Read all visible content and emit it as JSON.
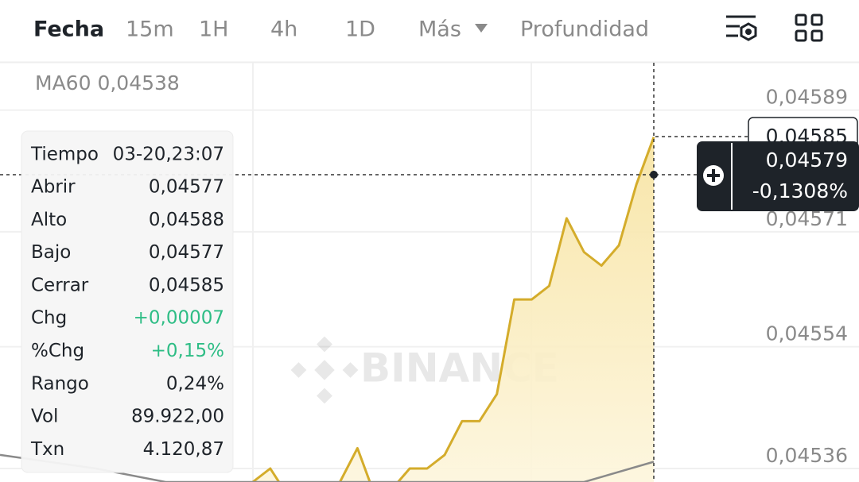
{
  "tabs": [
    "Fecha",
    "15m",
    "1H",
    "4h",
    "1D",
    "Más",
    "Profundidad"
  ],
  "ma": {
    "name": "MA60",
    "value": "0,04538"
  },
  "tooltip": {
    "time_label": "Tiempo",
    "time": "03-20,23:07",
    "rows": [
      [
        "Abrir",
        "0,04577"
      ],
      [
        "Alto",
        "0,04588"
      ],
      [
        "Bajo",
        "0,04577"
      ],
      [
        "Cerrar",
        "0,04585"
      ],
      [
        "Chg",
        "+0,00007"
      ],
      [
        "%Chg",
        "+0,15%"
      ],
      [
        "Rango",
        "0,24%"
      ],
      [
        "Vol",
        "89.922,00"
      ],
      [
        "Txn",
        "4.120,87"
      ]
    ]
  },
  "last_price": "0,04585",
  "crosshair": {
    "price": "0,04579",
    "change": "-0,1308%"
  },
  "watermark": "BINANCE",
  "chart_data": {
    "type": "line",
    "xlim": [
      -14.5,
      23
    ],
    "ylim": [
      0.04534,
      0.04596
    ],
    "yticks": [
      {
        "value": 0.04589,
        "label": "0,04589"
      },
      {
        "value": 0.04571,
        "label": "0,04571"
      },
      {
        "value": 0.04554,
        "label": "0,04554"
      },
      {
        "value": 0.04536,
        "label": "0,04536"
      }
    ],
    "grid": true,
    "series": [
      {
        "color": "#d4ac2b",
        "x": [
          0,
          1,
          2,
          3,
          4,
          5,
          6,
          7,
          8,
          9,
          10,
          11,
          12,
          13,
          14,
          15,
          16,
          17,
          18,
          19,
          20,
          21,
          22,
          23
        ],
        "values": [
          0.04534,
          0.04536,
          0.04532,
          0.04532,
          0.04532,
          0.04534,
          0.04539,
          0.04532,
          0.04533,
          0.04536,
          0.04536,
          0.04538,
          0.04543,
          0.04543,
          0.04547,
          0.04561,
          0.04561,
          0.04563,
          0.04573,
          0.04568,
          0.04566,
          0.04569,
          0.04578,
          0.04585
        ]
      },
      {
        "color": "#8a8a8a",
        "x": [
          -14.5,
          -9,
          -5,
          19,
          23
        ],
        "values": [
          0.04538,
          0.04536,
          0.04534,
          0.04534,
          0.04537
        ]
      }
    ]
  }
}
